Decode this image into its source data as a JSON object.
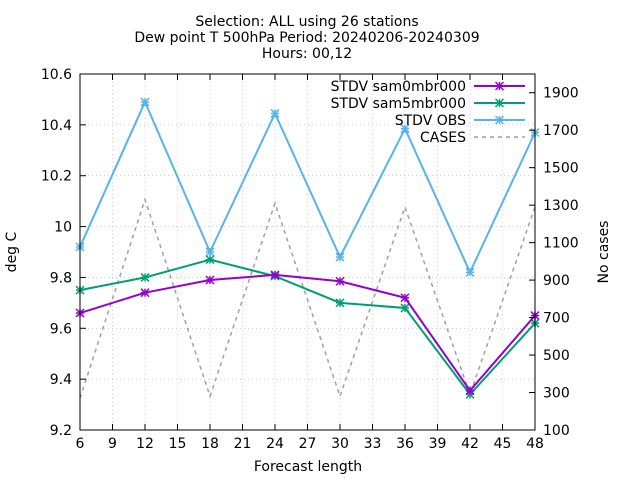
{
  "chart_data": {
    "type": "line",
    "title_lines": [
      "Selection: ALL using    26 stations",
      "Dew point T 500hPa   Period: 20240206-20240309",
      "Hours: 00,12"
    ],
    "xlabel": "Forecast length",
    "ylabel": "deg C",
    "y2label": "No cases",
    "xlim": [
      6,
      48
    ],
    "xticks": [
      6,
      9,
      12,
      15,
      18,
      21,
      24,
      27,
      30,
      33,
      36,
      39,
      42,
      45,
      48
    ],
    "ylim": [
      9.2,
      10.6
    ],
    "yticks": [
      "9.2",
      "9.4",
      "9.6",
      "9.8",
      "10",
      "10.2",
      "10.4",
      "10.6"
    ],
    "y2lim": [
      100,
      2000
    ],
    "y2ticks": [
      "100",
      "300",
      "500",
      "700",
      "900",
      "1100",
      "1300",
      "1500",
      "1700",
      "1900"
    ],
    "grid": true,
    "legend_position": "top-right",
    "x": [
      6,
      12,
      18,
      24,
      30,
      36,
      42,
      48
    ],
    "series": [
      {
        "name": "STDV sam0mbr000",
        "axis": "y",
        "color": "#9400d3",
        "marker": "x-star",
        "dash": false,
        "values": [
          9.66,
          9.74,
          9.79,
          9.81,
          9.785,
          9.72,
          9.355,
          9.65
        ]
      },
      {
        "name": "STDV sam5mbr000",
        "axis": "y",
        "color": "#009e73",
        "marker": "x-star",
        "dash": false,
        "values": [
          9.75,
          9.8,
          9.87,
          9.805,
          9.7,
          9.68,
          9.34,
          9.62
        ]
      },
      {
        "name": "STDV OBS",
        "axis": "y",
        "color": "#56b4e9",
        "marker": "x-star",
        "dash": false,
        "values": [
          9.92,
          10.49,
          9.9,
          10.445,
          9.88,
          10.385,
          9.82,
          10.37
        ]
      },
      {
        "name": "CASES",
        "axis": "y2",
        "color": "#a0a0a0",
        "marker": "none",
        "dash": true,
        "values": [
          270,
          1330,
          280,
          1310,
          280,
          1290,
          290,
          1290
        ]
      }
    ]
  }
}
